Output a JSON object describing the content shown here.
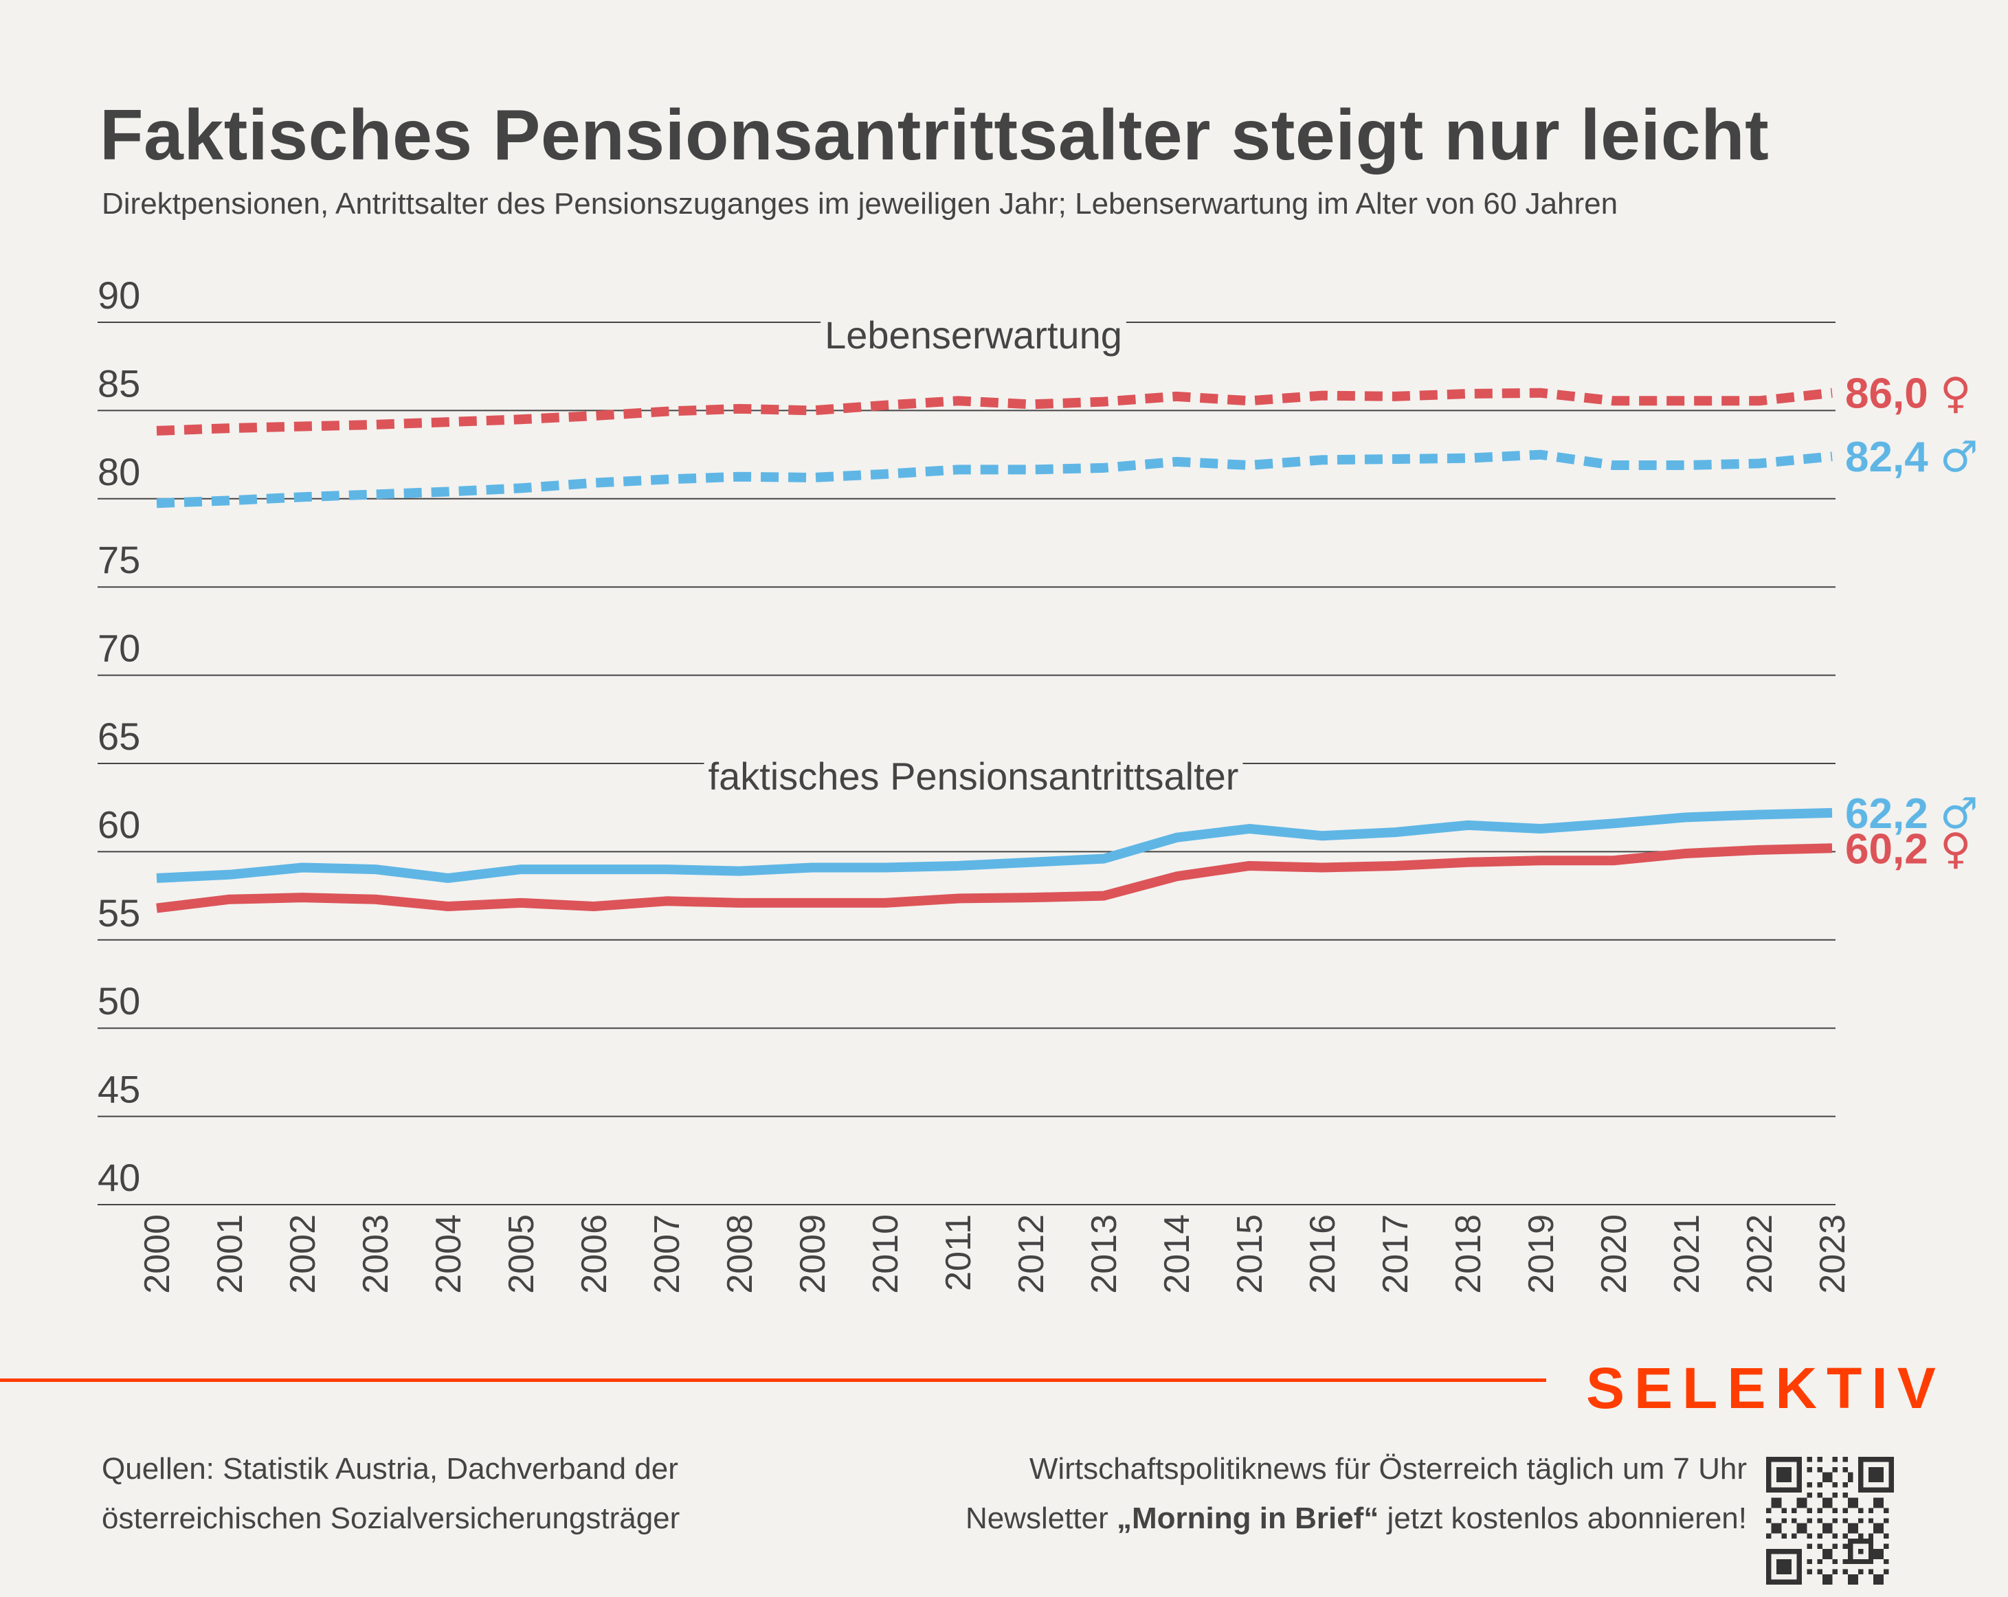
{
  "header": {
    "title": "Faktisches Pensionsantrittsalter steigt nur leicht",
    "subtitle": "Direktpensionen, Antrittsalter des Pensionszuganges im jeweiligen Jahr; Lebenserwartung im Alter von 60 Jahren"
  },
  "colors": {
    "female": "#dc5458",
    "male": "#5fb6e5",
    "text": "#444444",
    "grid": "#444444",
    "brand": "#ff3d00",
    "background": "#f3f2ef"
  },
  "chart_data": {
    "type": "line",
    "title": "Faktisches Pensionsantrittsalter steigt nur leicht",
    "xlabel": "",
    "ylabel": "",
    "ylim": [
      40,
      90
    ],
    "yticks": [
      90,
      85,
      80,
      75,
      70,
      65,
      60,
      55,
      50,
      45,
      40
    ],
    "grid": true,
    "legend": "direct labels at line ends (right)",
    "x": [
      2000,
      2001,
      2002,
      2003,
      2004,
      2005,
      2006,
      2007,
      2008,
      2009,
      2010,
      2011,
      2012,
      2013,
      2014,
      2015,
      2016,
      2017,
      2018,
      2019,
      2020,
      2021,
      2022,
      2023
    ],
    "annotations": [
      {
        "text": "Lebenserwartung",
        "at_y": 89.3
      },
      {
        "text": "faktisches Pensionsantrittsalter",
        "at_y": 64.3
      }
    ],
    "series": [
      {
        "name": "Lebenserwartung Frauen",
        "group": "Lebenserwartung",
        "style": "dashed",
        "color": "#dc5458",
        "symbol": "♀",
        "end_label": "86,0",
        "values": [
          83.85,
          84.0,
          84.1,
          84.2,
          84.35,
          84.5,
          84.7,
          84.95,
          85.1,
          85.0,
          85.3,
          85.55,
          85.35,
          85.5,
          85.8,
          85.55,
          85.85,
          85.8,
          85.95,
          86.0,
          85.55,
          85.55,
          85.55,
          86.0
        ]
      },
      {
        "name": "Lebenserwartung Männer",
        "group": "Lebenserwartung",
        "style": "dashed",
        "color": "#5fb6e5",
        "symbol": "♂",
        "end_label": "82,4",
        "values": [
          79.75,
          79.9,
          80.1,
          80.25,
          80.4,
          80.6,
          80.9,
          81.1,
          81.25,
          81.2,
          81.4,
          81.65,
          81.65,
          81.75,
          82.1,
          81.9,
          82.2,
          82.25,
          82.3,
          82.5,
          81.9,
          81.9,
          82.0,
          82.4
        ]
      },
      {
        "name": "Pensionsantrittsalter Männer",
        "group": "faktisches Pensionsantrittsalter",
        "style": "solid",
        "color": "#5fb6e5",
        "symbol": "♂",
        "end_label": "62,2",
        "values": [
          58.5,
          58.7,
          59.1,
          59.0,
          58.5,
          59.0,
          59.0,
          59.0,
          58.9,
          59.1,
          59.1,
          59.2,
          59.4,
          59.6,
          60.8,
          61.3,
          60.9,
          61.1,
          61.5,
          61.3,
          61.6,
          61.95,
          62.1,
          62.2
        ]
      },
      {
        "name": "Pensionsantrittsalter Frauen",
        "group": "faktisches Pensionsantrittsalter",
        "style": "solid",
        "color": "#dc5458",
        "symbol": "♀",
        "end_label": "60,2",
        "values": [
          56.8,
          57.3,
          57.4,
          57.3,
          56.9,
          57.1,
          56.9,
          57.2,
          57.1,
          57.1,
          57.1,
          57.35,
          57.4,
          57.5,
          58.6,
          59.2,
          59.1,
          59.2,
          59.4,
          59.5,
          59.5,
          59.9,
          60.1,
          60.2
        ]
      }
    ]
  },
  "footer": {
    "brand": "SELEKTIV",
    "sources_line1": "Quellen: Statistik Austria, Dachverband der",
    "sources_line2": "österreichischen Sozialversicherungsträger",
    "promo_line1": "Wirtschaftspolitiknews für Österreich täglich um 7 Uhr",
    "promo_line2_pre": "Newsletter ",
    "promo_line2_bold": "„Morning in Brief“",
    "promo_line2_post": " jetzt kostenlos abonnieren!",
    "qr_icon": "qr-code-icon"
  }
}
